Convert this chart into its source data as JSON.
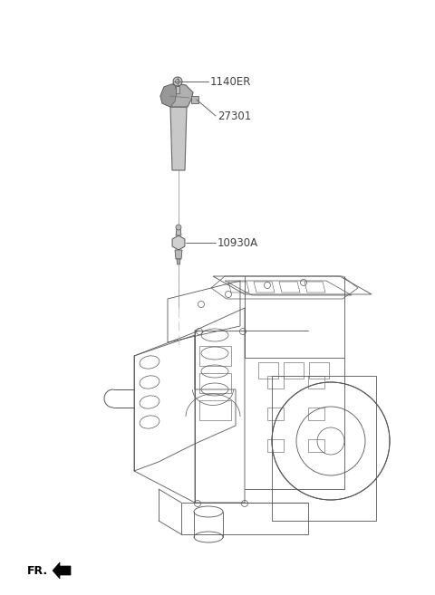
{
  "bg_color": "#ffffff",
  "fig_width": 4.8,
  "fig_height": 6.57,
  "dpi": 100,
  "part_labels": [
    "1140ER",
    "27301",
    "10930A"
  ],
  "fr_label": "FR.",
  "label_color": "#404040",
  "label_fontsize": 8.5,
  "line_color": "#444444",
  "engine_line_color": "#555555",
  "coil_gray": "#9a9a9a",
  "coil_dark": "#707070",
  "bolt_gray": "#888888"
}
